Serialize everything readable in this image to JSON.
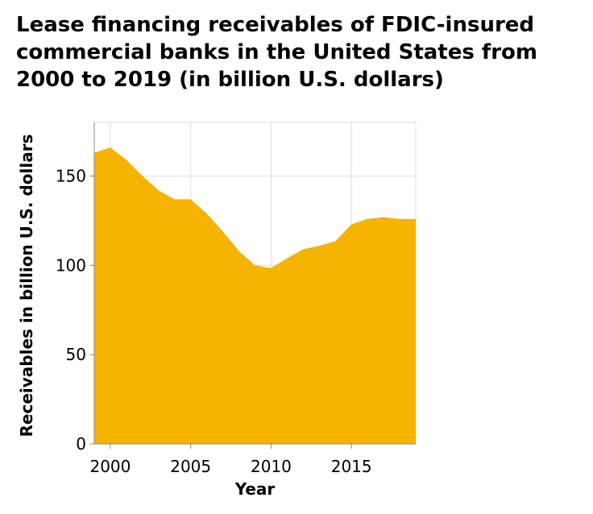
{
  "chart_data": {
    "type": "area",
    "title": "Lease financing receivables of FDIC-insured commercial banks in the United States from 2000 to 2019 (in billion U.S. dollars)",
    "xlabel": "Year",
    "ylabel": "Receivables in billion U.S. dollars",
    "x": [
      1999,
      2000,
      2001,
      2002,
      2003,
      2004,
      2005,
      2006,
      2007,
      2008,
      2009,
      2010,
      2011,
      2012,
      2013,
      2014,
      2015,
      2016,
      2017,
      2018,
      2019
    ],
    "series": [
      {
        "values": [
          163,
          166,
          159,
          150,
          142,
          137,
          137,
          129,
          119,
          108,
          100,
          98.5,
          104,
          109,
          111,
          113.5,
          123,
          126,
          127,
          126,
          126
        ]
      }
    ],
    "xlim": [
      1999,
      2019
    ],
    "ylim": [
      0,
      180
    ],
    "x_ticks": [
      2000,
      2005,
      2010,
      2015
    ],
    "y_ticks": [
      0,
      50,
      100,
      150
    ],
    "grid": true,
    "legend": "none",
    "colors": {
      "area": "#f4b400",
      "grid": "#dddddd",
      "axis": "#888888"
    }
  }
}
